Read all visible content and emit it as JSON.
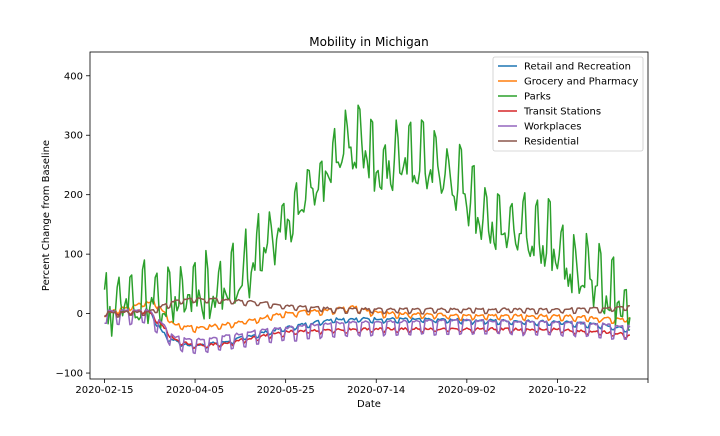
{
  "chart_data": {
    "type": "line",
    "title": "Mobility in Michigan",
    "xlabel": "Date",
    "ylabel": "Percent Change from Baseline",
    "x_start": "2020-02-15",
    "x_end": "2020-12-01",
    "xlim": [
      "2020-02-07",
      "2020-12-11"
    ],
    "ylim": [
      -110,
      440
    ],
    "xticks": [
      "2020-02-15",
      "2020-04-05",
      "2020-05-25",
      "2020-07-14",
      "2020-09-02",
      "2020-10-22",
      "2020-12-11"
    ],
    "xtick_labels": [
      "2020-02-15",
      "2020-04-05",
      "2020-05-25",
      "2020-07-14",
      "2020-09-02",
      "2020-10-22",
      ""
    ],
    "yticks": [
      -100,
      0,
      100,
      200,
      300,
      400
    ],
    "legend_position": "top-right",
    "grid": false,
    "series": [
      {
        "name": "Retail and Recreation",
        "color": "#1f77b4",
        "weekly_amplitude": 4,
        "keypoints": [
          [
            "2020-02-15",
            0
          ],
          [
            "2020-03-10",
            5
          ],
          [
            "2020-03-20",
            -40
          ],
          [
            "2020-04-01",
            -55
          ],
          [
            "2020-04-20",
            -50
          ],
          [
            "2020-05-10",
            -35
          ],
          [
            "2020-05-25",
            -25
          ],
          [
            "2020-06-20",
            -10
          ],
          [
            "2020-07-14",
            -10
          ],
          [
            "2020-09-02",
            -12
          ],
          [
            "2020-10-22",
            -15
          ],
          [
            "2020-11-15",
            -20
          ],
          [
            "2020-12-01",
            -28
          ]
        ]
      },
      {
        "name": "Grocery and Pharmacy",
        "color": "#ff7f0e",
        "weekly_amplitude": 5,
        "keypoints": [
          [
            "2020-02-15",
            0
          ],
          [
            "2020-03-13",
            20
          ],
          [
            "2020-03-25",
            -20
          ],
          [
            "2020-04-05",
            -25
          ],
          [
            "2020-04-20",
            -20
          ],
          [
            "2020-05-10",
            -10
          ],
          [
            "2020-05-25",
            0
          ],
          [
            "2020-06-20",
            5
          ],
          [
            "2020-07-01",
            10
          ],
          [
            "2020-07-14",
            0
          ],
          [
            "2020-09-02",
            -5
          ],
          [
            "2020-10-22",
            -5
          ],
          [
            "2020-11-20",
            -10
          ],
          [
            "2020-12-01",
            -10
          ]
        ]
      },
      {
        "name": "Parks",
        "color": "#2ca02c",
        "weekly_amplitude": 45,
        "keypoints": [
          [
            "2020-02-15",
            10
          ],
          [
            "2020-03-01",
            30
          ],
          [
            "2020-03-20",
            30
          ],
          [
            "2020-04-05",
            40
          ],
          [
            "2020-04-20",
            45
          ],
          [
            "2020-05-05",
            80
          ],
          [
            "2020-05-25",
            160
          ],
          [
            "2020-06-10",
            220
          ],
          [
            "2020-06-25",
            270
          ],
          [
            "2020-07-05",
            300
          ],
          [
            "2020-07-14",
            250
          ],
          [
            "2020-08-01",
            270
          ],
          [
            "2020-08-15",
            260
          ],
          [
            "2020-09-02",
            200
          ],
          [
            "2020-09-20",
            150
          ],
          [
            "2020-10-05",
            150
          ],
          [
            "2020-10-22",
            110
          ],
          [
            "2020-11-05",
            70
          ],
          [
            "2020-11-20",
            30
          ],
          [
            "2020-12-01",
            15
          ]
        ]
      },
      {
        "name": "Transit Stations",
        "color": "#d62728",
        "weekly_amplitude": 4,
        "keypoints": [
          [
            "2020-02-15",
            0
          ],
          [
            "2020-03-10",
            5
          ],
          [
            "2020-03-25",
            -45
          ],
          [
            "2020-04-05",
            -55
          ],
          [
            "2020-04-20",
            -52
          ],
          [
            "2020-05-10",
            -40
          ],
          [
            "2020-05-25",
            -32
          ],
          [
            "2020-06-20",
            -28
          ],
          [
            "2020-07-14",
            -27
          ],
          [
            "2020-09-02",
            -27
          ],
          [
            "2020-10-22",
            -28
          ],
          [
            "2020-11-20",
            -33
          ],
          [
            "2020-12-01",
            -37
          ]
        ]
      },
      {
        "name": "Workplaces",
        "color": "#9467bd",
        "weekly_amplitude": 16,
        "keypoints": [
          [
            "2020-02-15",
            -2
          ],
          [
            "2020-03-10",
            0
          ],
          [
            "2020-03-25",
            -45
          ],
          [
            "2020-04-05",
            -50
          ],
          [
            "2020-04-20",
            -45
          ],
          [
            "2020-05-10",
            -35
          ],
          [
            "2020-05-25",
            -30
          ],
          [
            "2020-06-20",
            -22
          ],
          [
            "2020-07-14",
            -20
          ],
          [
            "2020-09-02",
            -18
          ],
          [
            "2020-10-22",
            -20
          ],
          [
            "2020-11-20",
            -25
          ],
          [
            "2020-12-01",
            -28
          ]
        ]
      },
      {
        "name": "Residential",
        "color": "#8c564b",
        "weekly_amplitude": 5,
        "keypoints": [
          [
            "2020-02-15",
            0
          ],
          [
            "2020-03-10",
            2
          ],
          [
            "2020-03-25",
            20
          ],
          [
            "2020-04-05",
            24
          ],
          [
            "2020-04-20",
            22
          ],
          [
            "2020-05-10",
            18
          ],
          [
            "2020-05-25",
            12
          ],
          [
            "2020-06-20",
            7
          ],
          [
            "2020-07-14",
            6
          ],
          [
            "2020-09-02",
            6
          ],
          [
            "2020-10-22",
            6
          ],
          [
            "2020-11-20",
            8
          ],
          [
            "2020-12-01",
            10
          ]
        ]
      }
    ]
  }
}
